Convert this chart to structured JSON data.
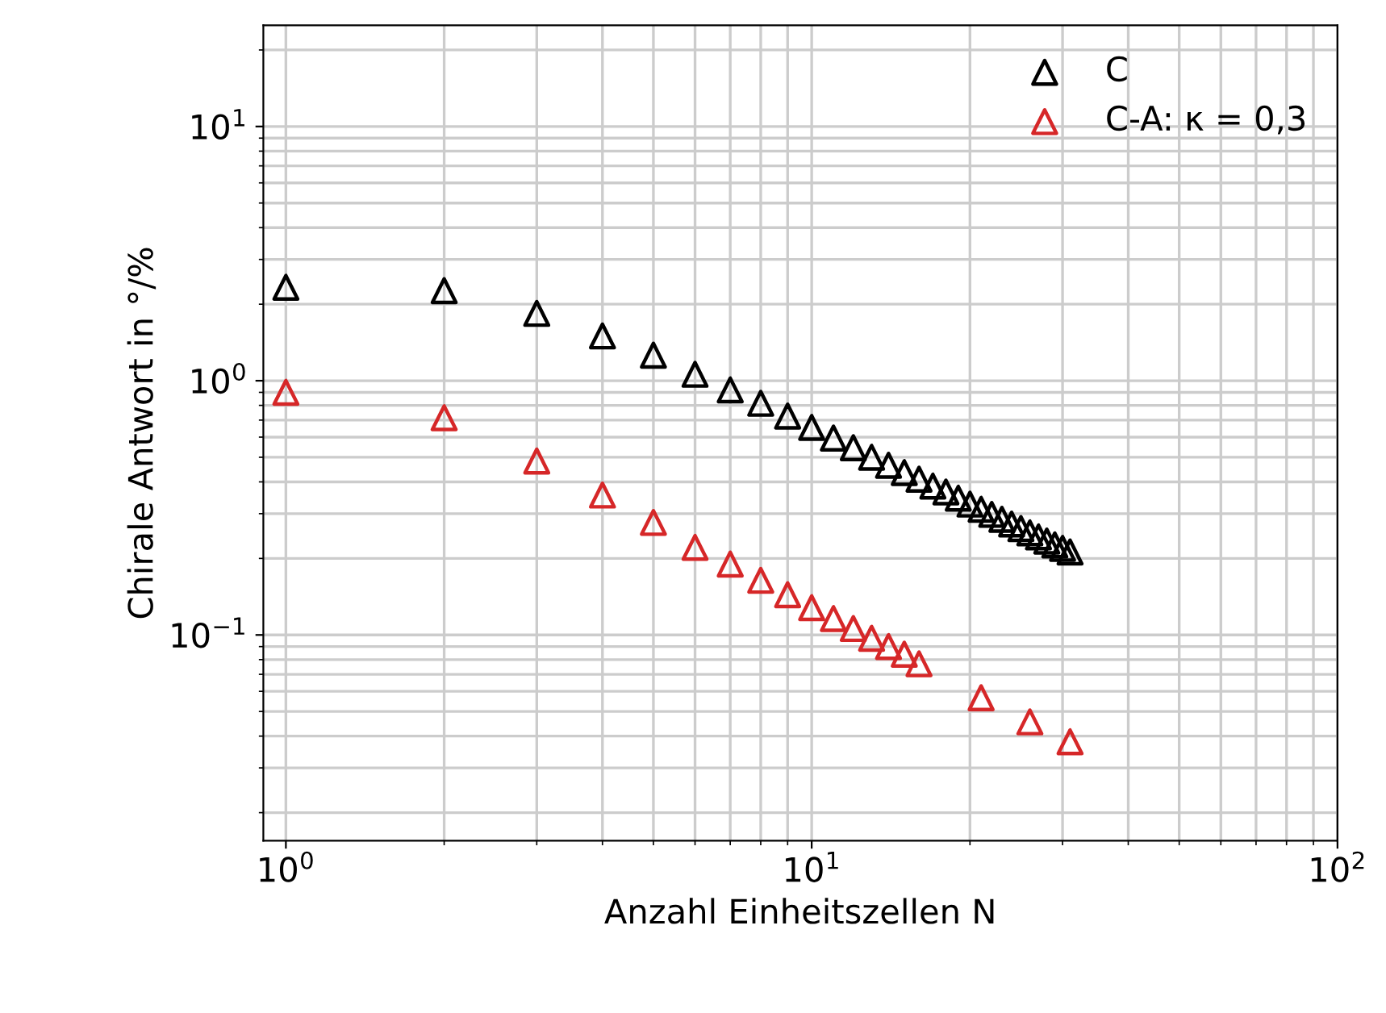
{
  "chart_data": {
    "type": "scatter",
    "xlabel": "Anzahl Einheitszellen N",
    "ylabel": "Chirale Antwort in °/%",
    "log": "xy",
    "grid": true,
    "legend": "top right",
    "marker": "triangle",
    "xlim": [
      0.906,
      100
    ],
    "ylim": [
      0.0155,
      25
    ],
    "xticks": [
      {
        "value": 1,
        "label": "10$^{0}$"
      },
      {
        "value": 10,
        "label": "10$^{1}$"
      },
      {
        "value": 100,
        "label": "10$^{2}$"
      }
    ],
    "yticks": [
      {
        "value": 0.1,
        "label": "10$^{−1}$"
      },
      {
        "value": 1,
        "label": "10$^{0}$"
      },
      {
        "value": 10,
        "label": "10$^{1}$"
      }
    ],
    "series": [
      {
        "name": "C",
        "color": "#000000",
        "x": [
          1,
          2,
          3,
          4,
          5,
          6,
          7,
          8,
          9,
          10,
          11,
          12,
          13,
          14,
          15,
          16,
          17,
          18,
          19,
          20,
          21,
          22,
          23,
          24,
          25,
          26,
          27,
          28,
          29,
          30,
          31
        ],
        "values": [
          2.33,
          2.26,
          1.84,
          1.5,
          1.26,
          1.06,
          0.92,
          0.815,
          0.726,
          0.655,
          0.595,
          0.545,
          0.5,
          0.465,
          0.435,
          0.41,
          0.385,
          0.365,
          0.345,
          0.327,
          0.312,
          0.298,
          0.285,
          0.273,
          0.262,
          0.252,
          0.243,
          0.234,
          0.226,
          0.219,
          0.212
        ]
      },
      {
        "name": "C-A: κ = 0,3",
        "color": "#d62728",
        "x": [
          1,
          2,
          3,
          4,
          5,
          6,
          7,
          8,
          9,
          10,
          11,
          12,
          13,
          14,
          15,
          16,
          21,
          26,
          31
        ],
        "values": [
          0.9,
          0.715,
          0.483,
          0.355,
          0.277,
          0.221,
          0.19,
          0.164,
          0.144,
          0.128,
          0.116,
          0.106,
          0.097,
          0.09,
          0.084,
          0.077,
          0.0566,
          0.0455,
          0.038
        ]
      }
    ]
  }
}
